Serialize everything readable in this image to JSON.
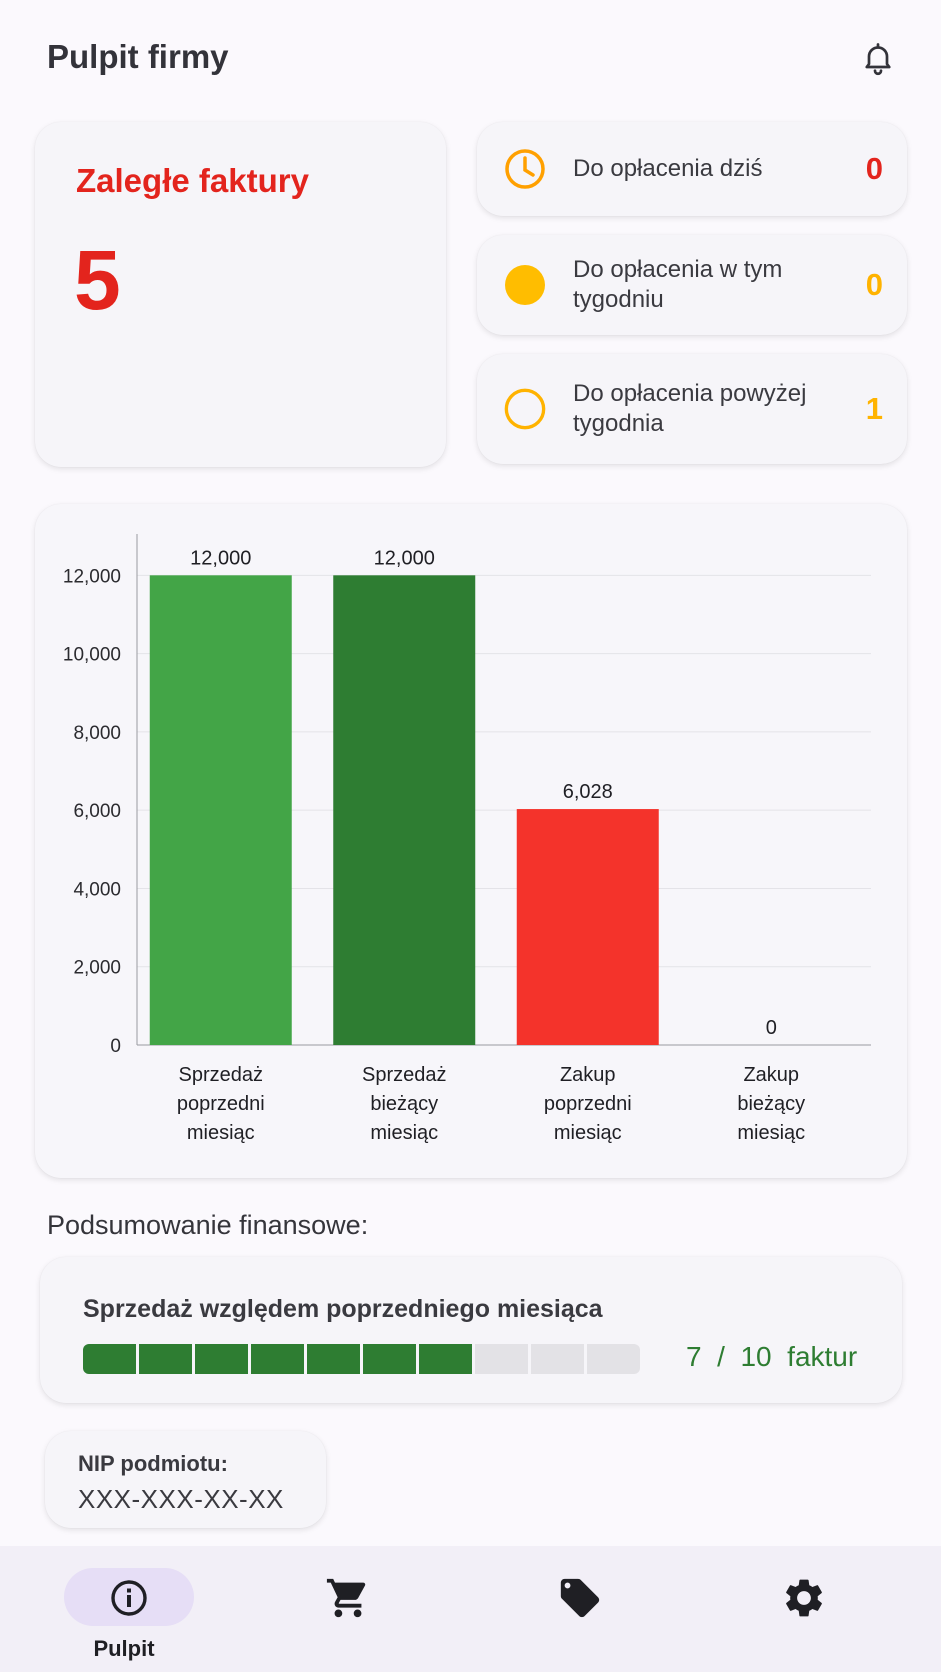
{
  "header": {
    "title": "Pulpit firmy",
    "bell_icon": "bell-icon"
  },
  "overdue": {
    "title": "Zaległe faktury",
    "count": "5",
    "color": "#e3241d"
  },
  "due_cards": [
    {
      "label": "Do opłacenia dziś",
      "value": "0",
      "icon": "clock-icon",
      "color": "#e3241d"
    },
    {
      "label": "Do opłacenia w tym tygodniu",
      "value": "0",
      "icon": "filled-circle-icon",
      "color": "#ffb300"
    },
    {
      "label": "Do opłacenia powyżej tygodnia",
      "value": "1",
      "icon": "hollow-circle-icon",
      "color": "#ffb300"
    }
  ],
  "chart_data": {
    "type": "bar",
    "categories": [
      [
        "Sprzedaż",
        "poprzedni",
        "miesiąc"
      ],
      [
        "Sprzedaż",
        "bieżący",
        "miesiąc"
      ],
      [
        "Zakup",
        "poprzedni",
        "miesiąc"
      ],
      [
        "Zakup",
        "bieżący",
        "miesiąc"
      ]
    ],
    "values": [
      12000,
      12000,
      6028,
      0
    ],
    "value_labels": [
      "12,000",
      "12,000",
      "6,028",
      "0"
    ],
    "colors": [
      "#43a547",
      "#2e7d32",
      "#f4332b",
      "#f4332b"
    ],
    "ylim": [
      0,
      12800
    ],
    "yticks": [
      0,
      2000,
      4000,
      6000,
      8000,
      10000,
      12000
    ],
    "ytick_labels": [
      "0",
      "2,000",
      "4,000",
      "6,000",
      "8,000",
      "10,000",
      "12,000"
    ],
    "grid": true,
    "title": "",
    "xlabel": "",
    "ylabel": ""
  },
  "summary": {
    "section_title": "Podsumowanie finansowe:",
    "progress_title": "Sprzedaż względem poprzedniego miesiąca",
    "progress_current": 7,
    "progress_total": 10,
    "progress_text": "7  /  10  faktur",
    "progress_color": "#2e7d32"
  },
  "nip": {
    "label": "NIP podmiotu:",
    "value": "XXX-XXX-XX-XX"
  },
  "bottom_nav": {
    "items": [
      {
        "label": "Pulpit",
        "icon": "info-icon",
        "active": true
      },
      {
        "label": "",
        "icon": "cart-icon",
        "active": false
      },
      {
        "label": "",
        "icon": "tag-icon",
        "active": false
      },
      {
        "label": "",
        "icon": "gear-icon",
        "active": false
      }
    ]
  }
}
